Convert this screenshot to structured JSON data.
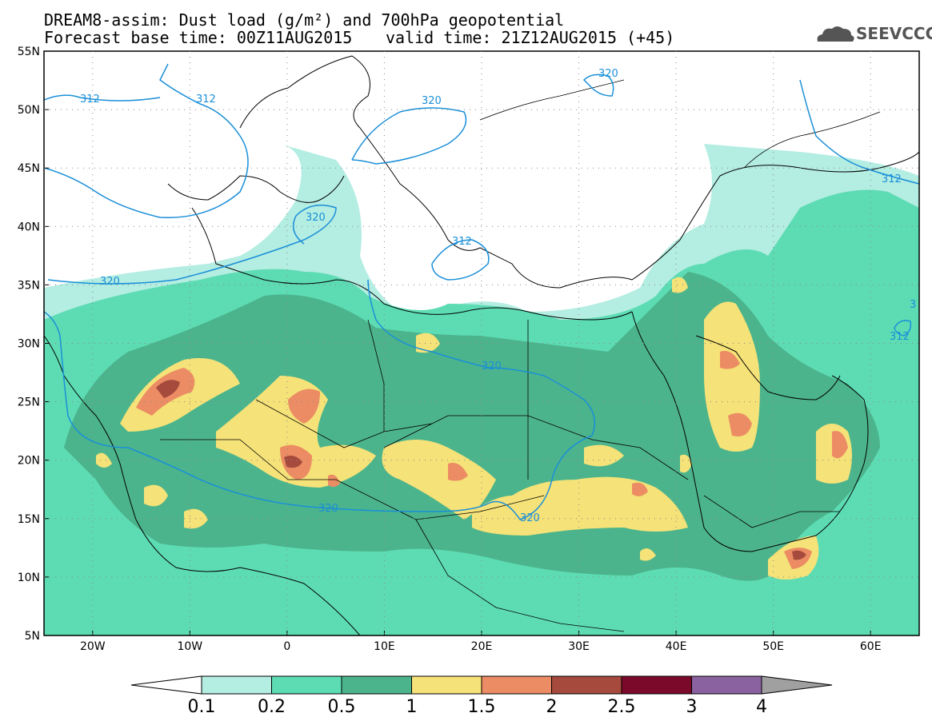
{
  "header": {
    "title": "DREAM8-assim: Dust load (g/m²) and 700hPa geopotential",
    "base_time": "Forecast base time: 00Z11AUG2015",
    "valid_time": "valid time: 21Z12AUG2015 (+45)",
    "logo_text": "SEEVCCC"
  },
  "map": {
    "lon_range": [
      -25,
      65
    ],
    "lat_range": [
      5,
      55
    ],
    "lat_labels": [
      "55N",
      "50N",
      "45N",
      "40N",
      "35N",
      "30N",
      "25N",
      "20N",
      "15N",
      "10N",
      "5N"
    ],
    "lon_labels": [
      "20W",
      "10W",
      "0",
      "10E",
      "20E",
      "30E",
      "40E",
      "50E",
      "60E"
    ],
    "contour_labels": [
      "312",
      "312",
      "320",
      "320",
      "312",
      "320",
      "320",
      "320",
      "320",
      "320",
      "312",
      "312",
      "3"
    ]
  },
  "colorbar": {
    "labels": [
      "0.1",
      "0.2",
      "0.5",
      "1",
      "1.5",
      "2",
      "2.5",
      "3",
      "4"
    ],
    "colors": [
      "#b4ede2",
      "#5ddcb4",
      "#4cb48c",
      "#f5e278",
      "#ec8c64",
      "#a54a3c",
      "#7b0a2a",
      "#8a62a0",
      "#a0a0a0"
    ]
  },
  "colors": {
    "c01": "#b4ede2",
    "c02": "#5ddcb4",
    "c05": "#4cb48c",
    "c1": "#f5e278",
    "c15": "#ec8c64",
    "c2": "#a54a3c",
    "contour": "#1a8fd8",
    "coast": "#000000"
  }
}
